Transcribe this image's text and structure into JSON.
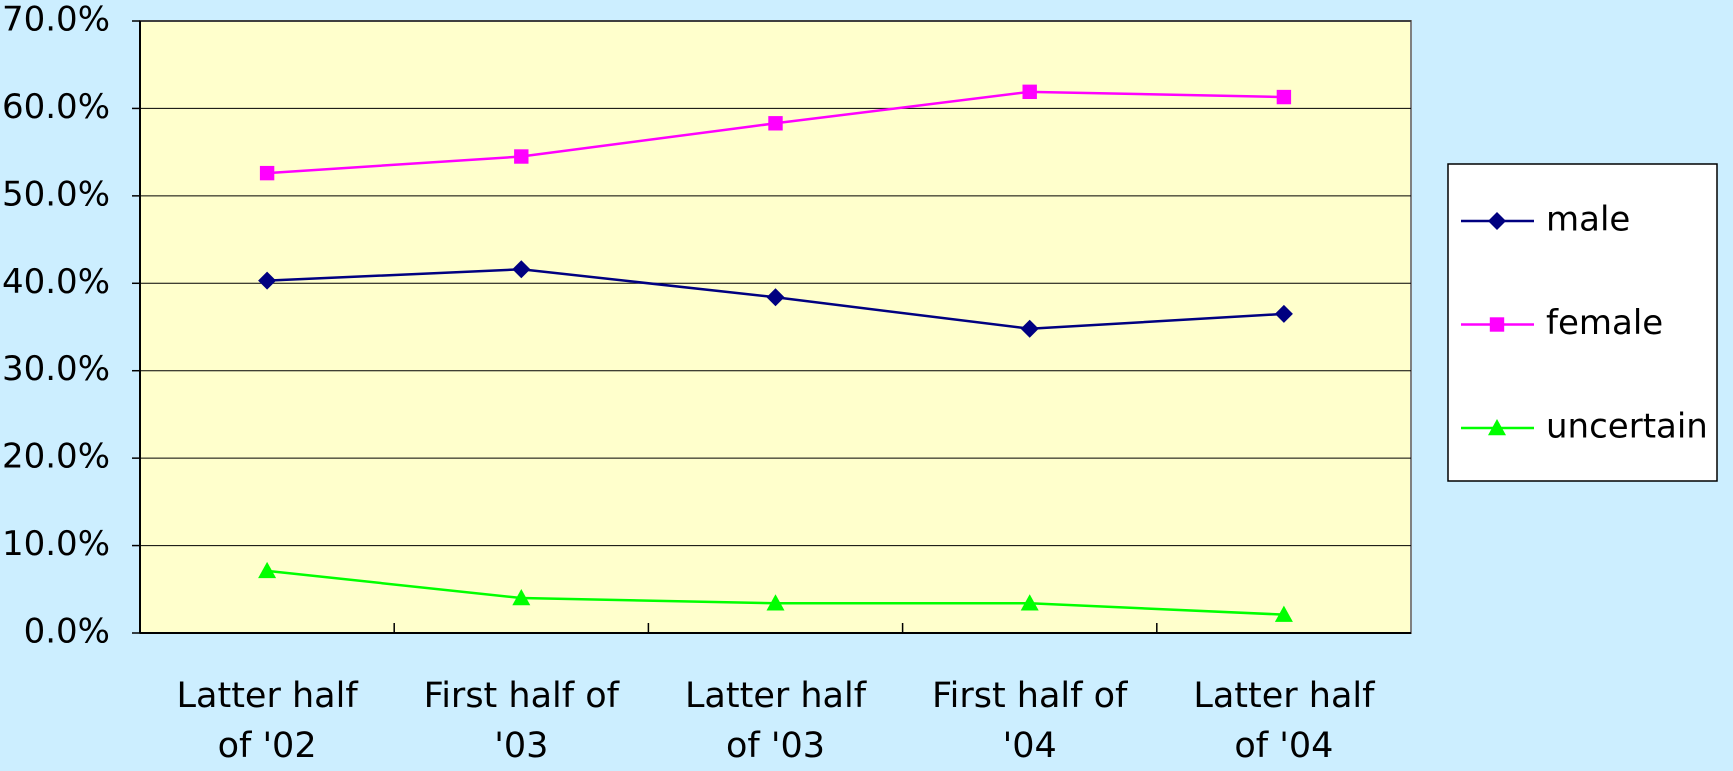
{
  "chart_data": {
    "type": "line",
    "categories": [
      "Latter half\nof '02",
      "First half of\n'03",
      "Latter half\nof '03",
      "First half of\n'04",
      "Latter half\nof '04"
    ],
    "series": [
      {
        "name": "male",
        "color": "#000080",
        "marker": "diamond",
        "values": [
          40.3,
          41.6,
          38.4,
          34.8,
          36.5
        ]
      },
      {
        "name": "female",
        "color": "#ff00ff",
        "marker": "square",
        "values": [
          52.6,
          54.5,
          58.3,
          61.9,
          61.3
        ]
      },
      {
        "name": "uncertain",
        "color": "#00ff00",
        "marker": "triangle",
        "values": [
          7.1,
          4.0,
          3.4,
          3.4,
          2.1
        ]
      }
    ],
    "ylim": [
      0,
      70
    ],
    "yticks": [
      {
        "value": 0,
        "label": "0.0%"
      },
      {
        "value": 10,
        "label": "10.0%"
      },
      {
        "value": 20,
        "label": "20.0%"
      },
      {
        "value": 30,
        "label": "30.0%"
      },
      {
        "value": 40,
        "label": "40.0%"
      },
      {
        "value": 50,
        "label": "50.0%"
      },
      {
        "value": 60,
        "label": "60.0%"
      },
      {
        "value": 70,
        "label": "70.0%"
      }
    ],
    "grid": true,
    "legend": "right"
  }
}
